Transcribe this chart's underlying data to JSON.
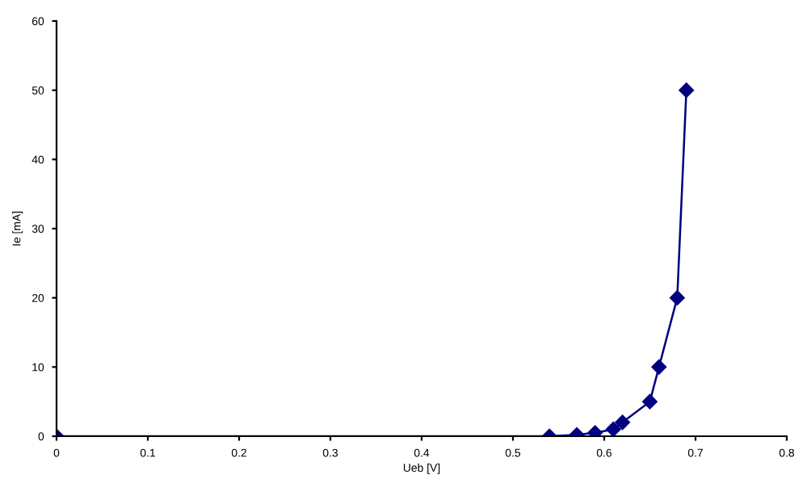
{
  "chart_data": {
    "type": "line",
    "xlabel": "Ueb [V]",
    "ylabel": "Ie [mA]",
    "x": [
      0,
      0.54,
      0.57,
      0.59,
      0.61,
      0.62,
      0.65,
      0.66,
      0.68,
      0.69
    ],
    "series": [
      {
        "color": "#000080",
        "values": [
          0,
          0,
          0.2,
          0.5,
          1,
          2,
          5,
          10,
          20,
          50
        ]
      }
    ],
    "xlim": [
      0,
      0.8
    ],
    "xticks": [
      0,
      0.1,
      0.2,
      0.3,
      0.4,
      0.5,
      0.6,
      0.7,
      0.8
    ],
    "ylim": [
      0,
      60
    ],
    "yticks": [
      0,
      10,
      20,
      30,
      40,
      50,
      60
    ],
    "grid": false,
    "legend": false,
    "marker": "diamond",
    "line_style": "solid"
  }
}
